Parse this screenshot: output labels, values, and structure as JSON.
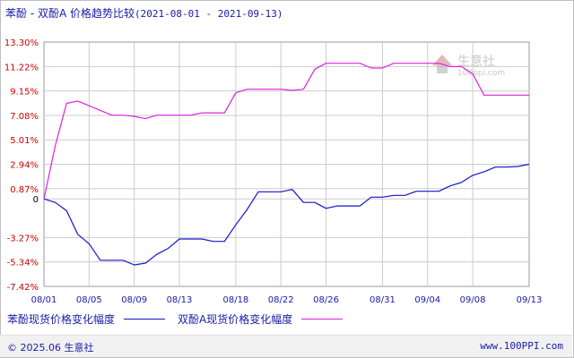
{
  "title": {
    "prefix": "苯酚 - 双酚A 价格趋势比较",
    "dates": "(2021-08-01 - 2021-09-13)"
  },
  "watermark": {
    "text": "生意社",
    "url": "100ppi.com"
  },
  "legend": [
    {
      "label": "苯酚现货价格变化幅度",
      "color": "#1515c8"
    },
    {
      "label": "双酚A现货价格变化幅度",
      "color": "#e020e0"
    }
  ],
  "footer": {
    "copyright": "© 2025.06 生意社",
    "site": "www.100PPI.com"
  },
  "colors": {
    "axis_text": "#cc0000",
    "date_text": "#1a1aa6",
    "grid": "#cccccc"
  },
  "chart_data": {
    "type": "line",
    "title": "苯酚 - 双酚A 价格趋势比较(2021-08-01 - 2021-09-13)",
    "xlabel": "",
    "ylabel": "",
    "ylim": [
      -7.42,
      13.3
    ],
    "y_ticks": [
      "13.30%",
      "11.22%",
      "9.15%",
      "7.08%",
      "5.01%",
      "2.94%",
      "0.87%",
      "0",
      "-3.27%",
      "-5.34%",
      "-7.42%"
    ],
    "y_tick_values": [
      13.3,
      11.22,
      9.15,
      7.08,
      5.01,
      2.94,
      0.87,
      0,
      -3.27,
      -5.34,
      -7.42
    ],
    "x_ticks": [
      "08/01",
      "08/05",
      "08/09",
      "08/13",
      "08/18",
      "08/22",
      "08/26",
      "08/31",
      "09/04",
      "09/08",
      "09/13"
    ],
    "x_tick_days": [
      0,
      4,
      8,
      12,
      17,
      21,
      25,
      30,
      34,
      38,
      43
    ],
    "grid": true,
    "series": [
      {
        "name": "苯酚现货价格变化幅度",
        "color": "#1515c8",
        "points": [
          [
            0,
            0
          ],
          [
            1,
            -0.3
          ],
          [
            2,
            -1.0
          ],
          [
            3,
            -3.0
          ],
          [
            4,
            -3.8
          ],
          [
            5,
            -5.2
          ],
          [
            6,
            -5.2
          ],
          [
            7,
            -5.2
          ],
          [
            8,
            -5.6
          ],
          [
            9,
            -5.45
          ],
          [
            10,
            -4.7
          ],
          [
            11,
            -4.2
          ],
          [
            12,
            -3.4
          ],
          [
            13,
            -3.4
          ],
          [
            14,
            -3.4
          ],
          [
            15,
            -3.6
          ],
          [
            16,
            -3.6
          ],
          [
            17,
            -2.2
          ],
          [
            18,
            -0.9
          ],
          [
            19,
            0.6
          ],
          [
            20,
            0.6
          ],
          [
            21,
            0.6
          ],
          [
            22,
            0.8
          ],
          [
            23,
            -0.3
          ],
          [
            24,
            -0.3
          ],
          [
            25,
            -0.8
          ],
          [
            26,
            -0.6
          ],
          [
            27,
            -0.6
          ],
          [
            28,
            -0.6
          ],
          [
            29,
            0.15
          ],
          [
            30,
            0.15
          ],
          [
            31,
            0.3
          ],
          [
            32,
            0.3
          ],
          [
            33,
            0.65
          ],
          [
            34,
            0.65
          ],
          [
            35,
            0.65
          ],
          [
            36,
            1.1
          ],
          [
            37,
            1.4
          ],
          [
            38,
            2.0
          ],
          [
            39,
            2.3
          ],
          [
            40,
            2.7
          ],
          [
            41,
            2.7
          ],
          [
            42,
            2.75
          ],
          [
            43,
            2.94
          ]
        ]
      },
      {
        "name": "双酚A现货价格变化幅度",
        "color": "#e020e0",
        "points": [
          [
            0,
            0
          ],
          [
            1,
            4.5
          ],
          [
            2,
            8.1
          ],
          [
            3,
            8.3
          ],
          [
            4,
            7.9
          ],
          [
            5,
            7.5
          ],
          [
            6,
            7.1
          ],
          [
            7,
            7.1
          ],
          [
            8,
            7.0
          ],
          [
            9,
            6.8
          ],
          [
            10,
            7.1
          ],
          [
            11,
            7.1
          ],
          [
            12,
            7.1
          ],
          [
            13,
            7.1
          ],
          [
            14,
            7.3
          ],
          [
            15,
            7.3
          ],
          [
            16,
            7.3
          ],
          [
            17,
            9.0
          ],
          [
            18,
            9.3
          ],
          [
            19,
            9.3
          ],
          [
            20,
            9.3
          ],
          [
            21,
            9.3
          ],
          [
            22,
            9.2
          ],
          [
            23,
            9.3
          ],
          [
            24,
            11.0
          ],
          [
            25,
            11.5
          ],
          [
            26,
            11.5
          ],
          [
            27,
            11.5
          ],
          [
            28,
            11.5
          ],
          [
            29,
            11.1
          ],
          [
            30,
            11.1
          ],
          [
            31,
            11.5
          ],
          [
            32,
            11.5
          ],
          [
            33,
            11.5
          ],
          [
            34,
            11.5
          ],
          [
            35,
            11.5
          ],
          [
            36,
            11.22
          ],
          [
            37,
            11.22
          ],
          [
            38,
            10.6
          ],
          [
            39,
            8.8
          ],
          [
            40,
            8.8
          ],
          [
            41,
            8.8
          ],
          [
            42,
            8.8
          ],
          [
            43,
            8.8
          ]
        ]
      }
    ]
  }
}
